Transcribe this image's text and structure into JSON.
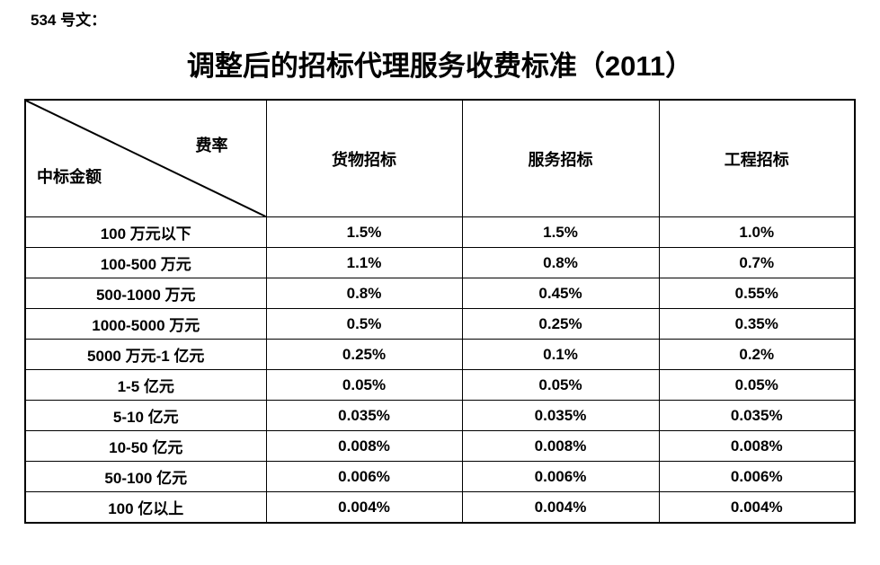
{
  "header": {
    "doc_number": "534 号文：",
    "title": "调整后的招标代理服务收费标准（2011）"
  },
  "table": {
    "corner": {
      "rate_label": "费率",
      "amount_label": "中标金额"
    },
    "columns": [
      "货物招标",
      "服务招标",
      "工程招标"
    ],
    "rows": [
      [
        "100 万元以下",
        "1.5%",
        "1.5%",
        "1.0%"
      ],
      [
        "100-500 万元",
        "1.1%",
        "0.8%",
        "0.7%"
      ],
      [
        "500-1000 万元",
        "0.8%",
        "0.45%",
        "0.55%"
      ],
      [
        "1000-5000 万元",
        "0.5%",
        "0.25%",
        "0.35%"
      ],
      [
        "5000 万元-1 亿元",
        "0.25%",
        "0.1%",
        "0.2%"
      ],
      [
        "1-5 亿元",
        "0.05%",
        "0.05%",
        "0.05%"
      ],
      [
        "5-10 亿元",
        "0.035%",
        "0.035%",
        "0.035%"
      ],
      [
        "10-50 亿元",
        "0.008%",
        "0.008%",
        "0.008%"
      ],
      [
        "50-100 亿元",
        "0.006%",
        "0.006%",
        "0.006%"
      ],
      [
        "100 亿以上",
        "0.004%",
        "0.004%",
        "0.004%"
      ]
    ],
    "border_color": "#000000",
    "text_color": "#000000",
    "background_color": "#ffffff"
  }
}
